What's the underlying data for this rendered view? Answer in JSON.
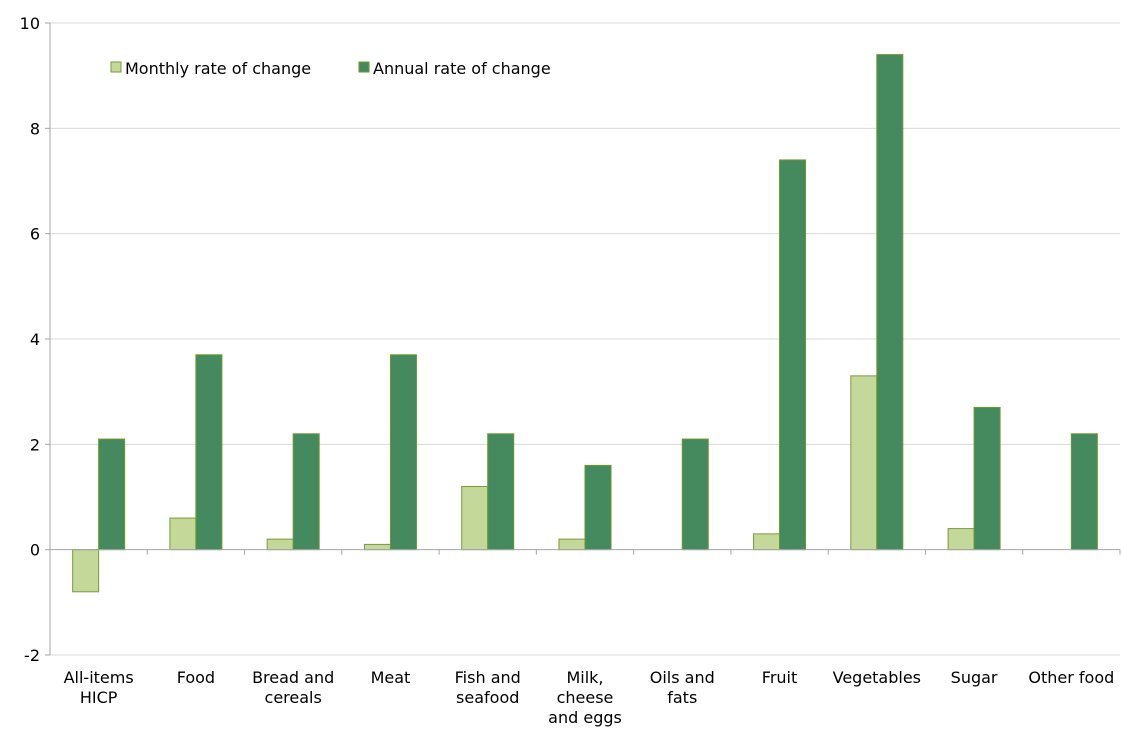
{
  "chart_data": {
    "type": "bar",
    "categories": [
      [
        "All-items",
        "HICP"
      ],
      [
        "Food"
      ],
      [
        "Bread and",
        "cereals"
      ],
      [
        "Meat"
      ],
      [
        "Fish and",
        "seafood"
      ],
      [
        "Milk,",
        "cheese",
        "and eggs"
      ],
      [
        "Oils and",
        "fats"
      ],
      [
        "Fruit"
      ],
      [
        "Vegetables"
      ],
      [
        "Sugar"
      ],
      [
        "Other food"
      ]
    ],
    "series": [
      {
        "name": "Monthly rate of change",
        "color": "#c4d89a",
        "stroke": "#7a9a3a",
        "values": [
          -0.8,
          0.6,
          0.2,
          0.1,
          1.2,
          0.2,
          0.0,
          0.3,
          3.3,
          0.4,
          0.0
        ]
      },
      {
        "name": "Annual rate of change",
        "color": "#458a5f",
        "stroke": "#6a9a2a",
        "values": [
          2.1,
          3.7,
          2.2,
          3.7,
          2.2,
          1.6,
          2.1,
          7.4,
          9.4,
          2.7,
          2.2
        ]
      }
    ],
    "yticks": [
      "-2",
      "0",
      "2",
      "4",
      "6",
      "8",
      "10"
    ],
    "ylim": [
      -2,
      10
    ],
    "grid": true,
    "legend": "top-left",
    "title": "",
    "xlabel": "",
    "ylabel": ""
  }
}
